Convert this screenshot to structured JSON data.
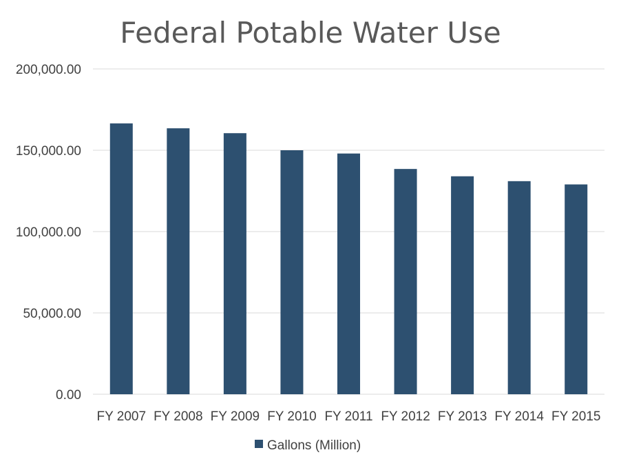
{
  "chart_data": {
    "type": "bar",
    "title": "Federal Potable Water Use",
    "categories": [
      "FY 2007",
      "FY 2008",
      "FY 2009",
      "FY 2010",
      "FY 2011",
      "FY 2012",
      "FY 2013",
      "FY 2014",
      "FY 2015"
    ],
    "series": [
      {
        "name": "Gallons (Million)",
        "color": "#2d5070",
        "values": [
          166500,
          163500,
          160500,
          150000,
          148000,
          138500,
          134000,
          131000,
          129000
        ]
      }
    ],
    "ylim": [
      0,
      200000
    ],
    "yticks": [
      0,
      50000,
      100000,
      150000,
      200000
    ],
    "ytick_labels": [
      "0.00",
      "50,000.00",
      "100,000.00",
      "150,000.00",
      "200,000.00"
    ],
    "xlabel": "",
    "ylabel": "",
    "grid": true,
    "legend_position": "bottom"
  }
}
